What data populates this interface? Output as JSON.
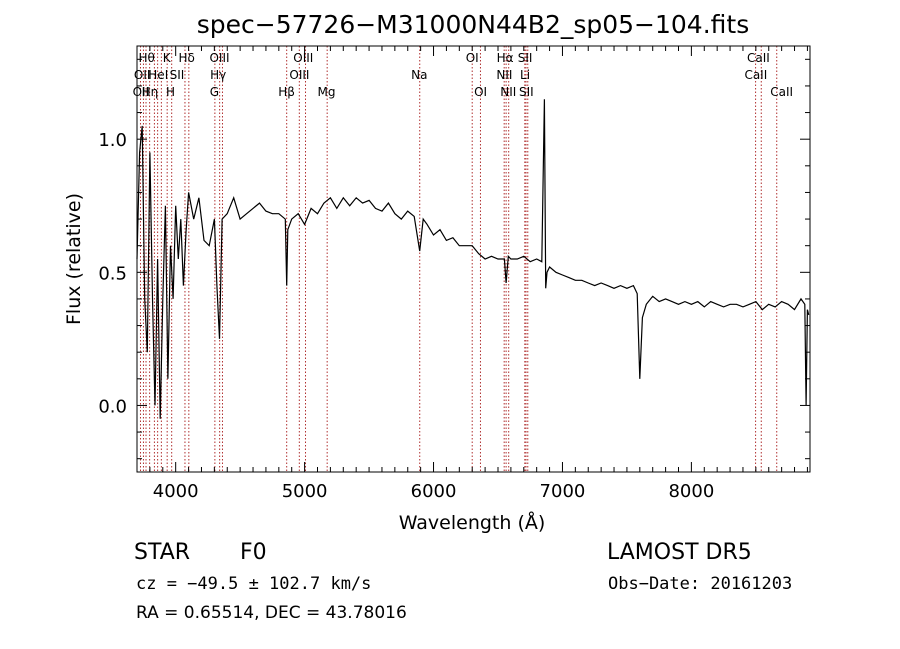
{
  "chart_data": {
    "type": "line",
    "title": "spec−57726−M31000N44B2_sp05−104.fits",
    "xlabel": "Wavelength (Å)",
    "ylabel": "Flux (relative)",
    "xlim": [
      3700,
      8920
    ],
    "ylim": [
      -0.25,
      1.35
    ],
    "xticks": [
      4000,
      5000,
      6000,
      7000,
      8000
    ],
    "xtick_labels": [
      "4000",
      "5000",
      "6000",
      "7000",
      "8000"
    ],
    "yticks": [
      0.0,
      0.5,
      1.0
    ],
    "ytick_labels": [
      "0.0",
      "0.5",
      "1.0"
    ],
    "grid": false,
    "legend": "none",
    "line_color": "#000000",
    "marker_color": "#b03030",
    "series": [
      {
        "x": [
          3700,
          3720,
          3740,
          3760,
          3780,
          3800,
          3820,
          3840,
          3860,
          3880,
          3900,
          3920,
          3940,
          3960,
          3980,
          4000,
          4020,
          4040,
          4060,
          4080,
          4100,
          4140,
          4180,
          4220,
          4260,
          4300,
          4320,
          4340,
          4360,
          4400,
          4450,
          4500,
          4550,
          4600,
          4650,
          4700,
          4750,
          4800,
          4850,
          4861,
          4870,
          4900,
          4950,
          5000,
          5050,
          5100,
          5150,
          5200,
          5250,
          5300,
          5350,
          5400,
          5450,
          5500,
          5550,
          5600,
          5650,
          5700,
          5750,
          5800,
          5850,
          5893,
          5920,
          5950,
          6000,
          6050,
          6100,
          6150,
          6200,
          6250,
          6300,
          6350,
          6400,
          6450,
          6500,
          6550,
          6563,
          6580,
          6600,
          6650,
          6700,
          6750,
          6800,
          6840,
          6860,
          6870,
          6880,
          6900,
          6950,
          7000,
          7050,
          7100,
          7150,
          7200,
          7250,
          7300,
          7350,
          7400,
          7450,
          7500,
          7550,
          7580,
          7600,
          7620,
          7650,
          7700,
          7750,
          7800,
          7850,
          7900,
          7950,
          8000,
          8050,
          8100,
          8150,
          8200,
          8250,
          8300,
          8350,
          8400,
          8450,
          8500,
          8550,
          8600,
          8650,
          8700,
          8750,
          8800,
          8850,
          8880,
          8890,
          8900,
          8910
        ],
        "y": [
          0.55,
          0.95,
          1.05,
          0.4,
          0.2,
          0.95,
          0.4,
          0.0,
          0.55,
          -0.05,
          0.4,
          0.75,
          0.1,
          0.6,
          0.4,
          0.75,
          0.55,
          0.7,
          0.45,
          0.65,
          0.8,
          0.7,
          0.78,
          0.62,
          0.6,
          0.7,
          0.45,
          0.25,
          0.7,
          0.72,
          0.78,
          0.7,
          0.72,
          0.74,
          0.76,
          0.73,
          0.72,
          0.72,
          0.7,
          0.45,
          0.66,
          0.7,
          0.72,
          0.68,
          0.74,
          0.72,
          0.76,
          0.78,
          0.74,
          0.78,
          0.75,
          0.78,
          0.76,
          0.77,
          0.74,
          0.73,
          0.76,
          0.72,
          0.7,
          0.73,
          0.71,
          0.58,
          0.7,
          0.68,
          0.64,
          0.66,
          0.62,
          0.63,
          0.6,
          0.6,
          0.6,
          0.57,
          0.55,
          0.56,
          0.55,
          0.55,
          0.46,
          0.56,
          0.55,
          0.55,
          0.56,
          0.54,
          0.55,
          0.54,
          1.15,
          0.44,
          0.5,
          0.52,
          0.5,
          0.49,
          0.48,
          0.47,
          0.47,
          0.46,
          0.45,
          0.46,
          0.45,
          0.44,
          0.45,
          0.44,
          0.45,
          0.42,
          0.1,
          0.33,
          0.38,
          0.41,
          0.39,
          0.4,
          0.39,
          0.38,
          0.39,
          0.38,
          0.39,
          0.37,
          0.39,
          0.38,
          0.37,
          0.38,
          0.38,
          0.37,
          0.38,
          0.39,
          0.36,
          0.38,
          0.37,
          0.39,
          0.38,
          0.36,
          0.4,
          0.38,
          0.0,
          0.36,
          0.34
        ]
      }
    ],
    "line_markers": [
      {
        "x": 3727,
        "labels": [
          "OII"
        ]
      },
      {
        "x": 3750,
        "labels": [
          "OII"
        ]
      },
      {
        "x": 3770,
        "labels": [
          "Hθ"
        ]
      },
      {
        "x": 3798,
        "labels": [
          "Hη"
        ]
      },
      {
        "x": 3835,
        "labels": [
          "HeI"
        ]
      },
      {
        "x": 3860,
        "labels": [
          "Hη"
        ]
      },
      {
        "x": 3889,
        "labels": []
      },
      {
        "x": 3934,
        "labels": [
          "K"
        ]
      },
      {
        "x": 3969,
        "labels": [
          "H"
        ]
      },
      {
        "x": 4072,
        "labels": [
          "Hδ",
          "SII"
        ]
      },
      {
        "x": 4102,
        "labels": []
      },
      {
        "x": 4304,
        "labels": [
          "G"
        ]
      },
      {
        "x": 4341,
        "labels": [
          "OIII",
          "Hγ"
        ]
      },
      {
        "x": 4363,
        "labels": []
      },
      {
        "x": 4861,
        "labels": [
          "Hβ"
        ]
      },
      {
        "x": 4959,
        "labels": [
          "OIII"
        ]
      },
      {
        "x": 5007,
        "labels": [
          "OIII"
        ]
      },
      {
        "x": 5175,
        "labels": [
          "Mg"
        ]
      },
      {
        "x": 5893,
        "labels": [
          "Na"
        ]
      },
      {
        "x": 6300,
        "labels": [
          "OI"
        ]
      },
      {
        "x": 6364,
        "labels": [
          "OI"
        ]
      },
      {
        "x": 6548,
        "labels": [
          "NII"
        ]
      },
      {
        "x": 6563,
        "labels": [
          "Hα"
        ]
      },
      {
        "x": 6583,
        "labels": [
          "NII"
        ]
      },
      {
        "x": 6708,
        "labels": [
          "Li"
        ]
      },
      {
        "x": 6717,
        "labels": [
          "SII"
        ]
      },
      {
        "x": 6731,
        "labels": [
          "SII"
        ]
      },
      {
        "x": 8498,
        "labels": [
          "CaII"
        ]
      },
      {
        "x": 8542,
        "labels": [
          "CaII"
        ]
      },
      {
        "x": 8662,
        "labels": [
          "CaII"
        ]
      }
    ],
    "marker_label_rows": [
      {
        "row": 1,
        "labels": [
          {
            "text": "Hθ",
            "x": 3775
          },
          {
            "text": "K",
            "x": 3930
          },
          {
            "text": "Hδ",
            "x": 4085
          },
          {
            "text": "OIII",
            "x": 4340
          },
          {
            "text": "OIII",
            "x": 4990
          },
          {
            "text": "OI",
            "x": 6300
          },
          {
            "text": "Hα",
            "x": 6555
          },
          {
            "text": "SII",
            "x": 6710
          },
          {
            "text": "CaII",
            "x": 8520
          }
        ]
      },
      {
        "row": 2,
        "labels": [
          {
            "text": "OII",
            "x": 3740
          },
          {
            "text": "HeI",
            "x": 3865
          },
          {
            "text": "SII",
            "x": 4010
          },
          {
            "text": "Hγ",
            "x": 4330
          },
          {
            "text": "OIII",
            "x": 4960
          },
          {
            "text": "Na",
            "x": 5890
          },
          {
            "text": "NII",
            "x": 6550
          },
          {
            "text": "Li",
            "x": 6710
          },
          {
            "text": "CaII",
            "x": 8500
          }
        ]
      },
      {
        "row": 3,
        "labels": [
          {
            "text": "OII",
            "x": 3730
          },
          {
            "text": "Hη",
            "x": 3800
          },
          {
            "text": "H",
            "x": 3960
          },
          {
            "text": "G",
            "x": 4300
          },
          {
            "text": "Hβ",
            "x": 4860
          },
          {
            "text": "Mg",
            "x": 5170
          },
          {
            "text": "OI",
            "x": 6365
          },
          {
            "text": "NII",
            "x": 6580
          },
          {
            "text": "SII",
            "x": 6720
          },
          {
            "text": "CaII",
            "x": 8700
          }
        ]
      }
    ]
  },
  "info": {
    "class_label": "STAR",
    "subclass": "F0",
    "survey": "LAMOST  DR5",
    "cz": "cz = −49.5 ± 102.7 km/s",
    "obs_date": "Obs−Date: 20161203",
    "radec": "RA =    0.65514, DEC =   43.78016"
  }
}
